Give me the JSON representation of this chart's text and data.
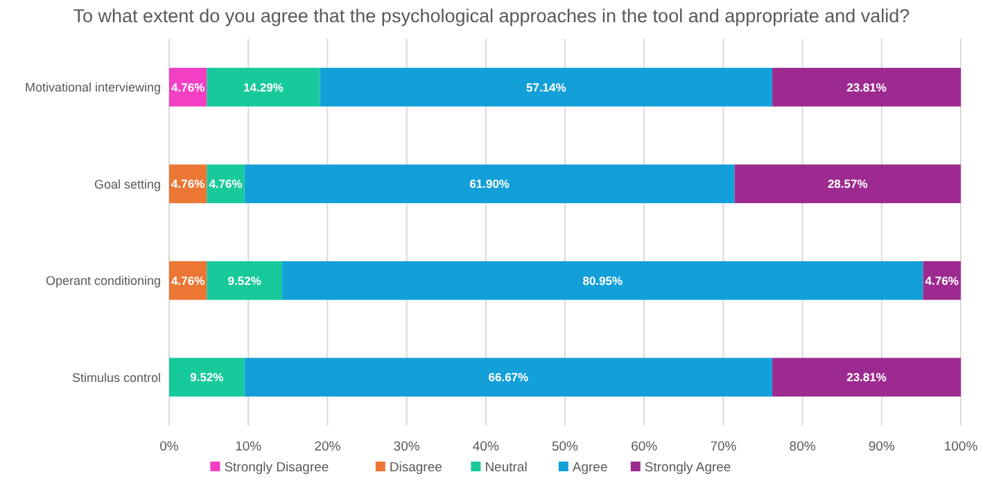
{
  "chart_data": {
    "type": "bar",
    "orientation": "horizontal",
    "stacked": true,
    "title": "To what extent do you agree that the psychological approaches in the tool and appropriate and valid?",
    "categories": [
      "Motivational interviewing",
      "Goal setting",
      "Operant conditioning",
      "Stimulus control"
    ],
    "series": [
      {
        "name": "Strongly Disagree",
        "color": "#f23fc3",
        "values": [
          4.76,
          0,
          0,
          0
        ],
        "value_labels": [
          "4.76%",
          null,
          null,
          null
        ]
      },
      {
        "name": "Disagree",
        "color": "#ec7634",
        "values": [
          0,
          4.76,
          4.76,
          0
        ],
        "value_labels": [
          null,
          "4.76%",
          "4.76%",
          null
        ]
      },
      {
        "name": "Neutral",
        "color": "#17c99b",
        "values": [
          14.29,
          4.76,
          9.52,
          9.52
        ],
        "value_labels": [
          "14.29%",
          "4.76%",
          "9.52%",
          "9.52%"
        ]
      },
      {
        "name": "Agree",
        "color": "#139fd8",
        "values": [
          57.14,
          61.9,
          80.95,
          66.67
        ],
        "value_labels": [
          "57.14%",
          "61.90%",
          "80.95%",
          "66.67%"
        ]
      },
      {
        "name": "Strongly Agree",
        "color": "#9d2a90",
        "values": [
          23.81,
          28.57,
          4.76,
          23.81
        ],
        "value_labels": [
          "23.81%",
          "28.57%",
          "4.76%",
          "23.81%"
        ]
      }
    ],
    "xlim": [
      0,
      100
    ],
    "xticks": [
      {
        "value": 0,
        "label": "0%"
      },
      {
        "value": 10,
        "label": "10%"
      },
      {
        "value": 20,
        "label": "20%"
      },
      {
        "value": 30,
        "label": "30%"
      },
      {
        "value": 40,
        "label": "40%"
      },
      {
        "value": 50,
        "label": "50%"
      },
      {
        "value": 60,
        "label": "60%"
      },
      {
        "value": 70,
        "label": "70%"
      },
      {
        "value": 80,
        "label": "80%"
      },
      {
        "value": 90,
        "label": "90%"
      },
      {
        "value": 100,
        "label": "100%"
      }
    ],
    "grid": "x",
    "legend": "bottom"
  }
}
